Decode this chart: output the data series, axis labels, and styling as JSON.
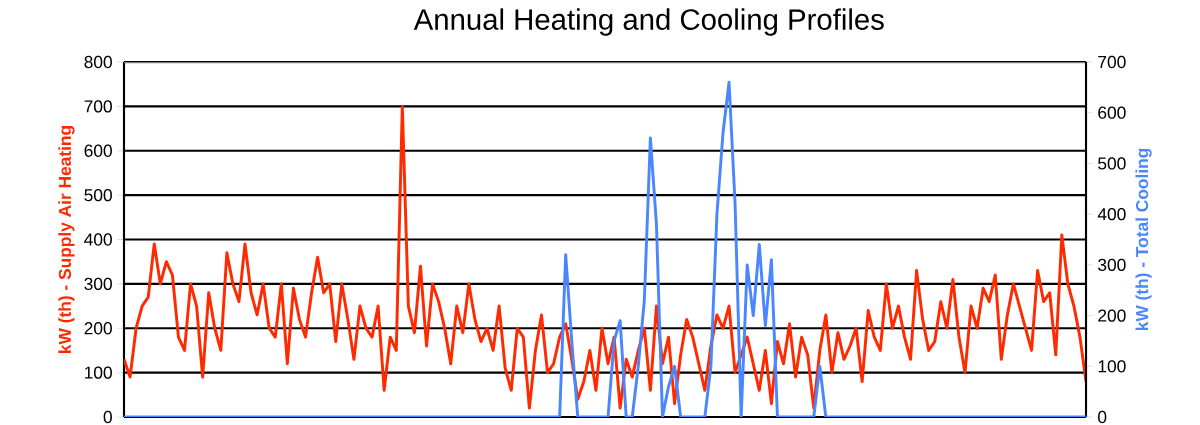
{
  "chart_data": {
    "type": "line",
    "title": "Annual Heating and Cooling Profiles",
    "ylabel": "kW (th) - Supply  Air Heating",
    "y2label": "kW (th) - Total Cooling",
    "categories": [
      null,
      null,
      null,
      null,
      null,
      null,
      null,
      null,
      null,
      null,
      null,
      null,
      null,
      null,
      null,
      null,
      null,
      null,
      null,
      null,
      null,
      null,
      null,
      null,
      null,
      null,
      null,
      null,
      null,
      null,
      null,
      null,
      null,
      null,
      null,
      null,
      null,
      null,
      null,
      null,
      null,
      null,
      null,
      null,
      null,
      null,
      null,
      null,
      null,
      null,
      null,
      null,
      null,
      null,
      null,
      null,
      null,
      null,
      null,
      null,
      null,
      null,
      null,
      null,
      null,
      null,
      null,
      null,
      null,
      null,
      null,
      null,
      null,
      null,
      null,
      null,
      null,
      null,
      null,
      null,
      null,
      null,
      null,
      null,
      null,
      null,
      null,
      null,
      null,
      null,
      null,
      null,
      null,
      null,
      null,
      null,
      null,
      null,
      null,
      null,
      null,
      null,
      null,
      null,
      null,
      null,
      null,
      null,
      null,
      null,
      null,
      null,
      null,
      null,
      null,
      null,
      null,
      null,
      null,
      null,
      null,
      null,
      null,
      null,
      null,
      null,
      null,
      null,
      null,
      null,
      null,
      null,
      null,
      null,
      null,
      null,
      null,
      null,
      null,
      null,
      null,
      null,
      null,
      null,
      null,
      null,
      null,
      null,
      null,
      null,
      null,
      null,
      null,
      null,
      null,
      null,
      null,
      null,
      null,
      null
    ],
    "series": [
      {
        "color": "#ff2a00",
        "values": [
          130,
          90,
          200,
          250,
          270,
          390,
          300,
          350,
          320,
          180,
          150,
          300,
          250,
          90,
          280,
          200,
          150,
          370,
          300,
          260,
          390,
          280,
          230,
          300,
          200,
          180,
          300,
          120,
          290,
          220,
          180,
          280,
          360,
          280,
          300,
          170,
          300,
          220,
          130,
          250,
          200,
          180,
          250,
          60,
          180,
          150,
          700,
          250,
          190,
          340,
          160,
          300,
          260,
          200,
          120,
          250,
          190,
          300,
          220,
          170,
          200,
          150,
          250,
          110,
          60,
          200,
          180,
          20,
          150,
          230,
          100,
          120,
          180,
          210,
          130,
          40,
          80,
          150,
          60,
          200,
          120,
          180,
          20,
          130,
          90,
          150,
          200,
          60,
          250,
          120,
          180,
          30,
          140,
          220,
          180,
          120,
          60,
          160,
          230,
          200,
          250,
          100,
          140,
          180,
          120,
          60,
          150,
          30,
          170,
          120,
          210,
          90,
          180,
          140,
          20,
          150,
          230,
          100,
          190,
          130,
          160,
          200,
          80,
          240,
          180,
          150,
          300,
          200,
          250,
          180,
          130,
          330,
          220,
          150,
          170,
          260,
          200,
          310,
          180,
          100,
          250,
          200,
          290,
          260,
          320,
          130,
          230,
          300,
          250,
          200,
          150,
          330,
          260,
          280,
          140,
          410,
          300,
          250,
          180,
          80
        ]
      },
      {
        "color": "#4a86ff",
        "axis": "y2",
        "values": [
          0,
          0,
          0,
          0,
          0,
          0,
          0,
          0,
          0,
          0,
          0,
          0,
          0,
          0,
          0,
          0,
          0,
          0,
          0,
          0,
          0,
          0,
          0,
          0,
          0,
          0,
          0,
          0,
          0,
          0,
          0,
          0,
          0,
          0,
          0,
          0,
          0,
          0,
          0,
          0,
          0,
          0,
          0,
          0,
          0,
          0,
          0,
          0,
          0,
          0,
          0,
          0,
          0,
          0,
          0,
          0,
          0,
          0,
          0,
          0,
          0,
          0,
          0,
          0,
          0,
          0,
          0,
          0,
          0,
          0,
          0,
          0,
          0,
          320,
          150,
          0,
          0,
          0,
          0,
          0,
          0,
          150,
          190,
          0,
          0,
          100,
          230,
          550,
          380,
          0,
          60,
          100,
          0,
          0,
          0,
          0,
          0,
          100,
          400,
          560,
          660,
          420,
          0,
          300,
          200,
          340,
          180,
          310,
          0,
          0,
          0,
          0,
          0,
          0,
          0,
          100,
          0,
          0,
          0,
          0,
          0,
          0,
          0,
          0,
          0,
          0,
          0,
          0,
          0,
          0,
          0,
          0,
          0,
          0,
          0,
          0,
          0,
          0,
          0,
          0,
          0,
          0,
          0,
          0,
          0,
          0,
          0,
          0,
          0,
          0,
          0,
          0,
          0,
          0,
          0,
          0,
          0,
          0,
          0,
          0
        ]
      }
    ],
    "ylim": [
      0,
      800
    ],
    "yticks": [
      0,
      100,
      200,
      300,
      400,
      500,
      600,
      700,
      800
    ],
    "y2lim": [
      0,
      700
    ],
    "y2ticks": [
      0,
      100,
      200,
      300,
      400,
      500,
      600,
      700
    ],
    "grid": "y"
  }
}
